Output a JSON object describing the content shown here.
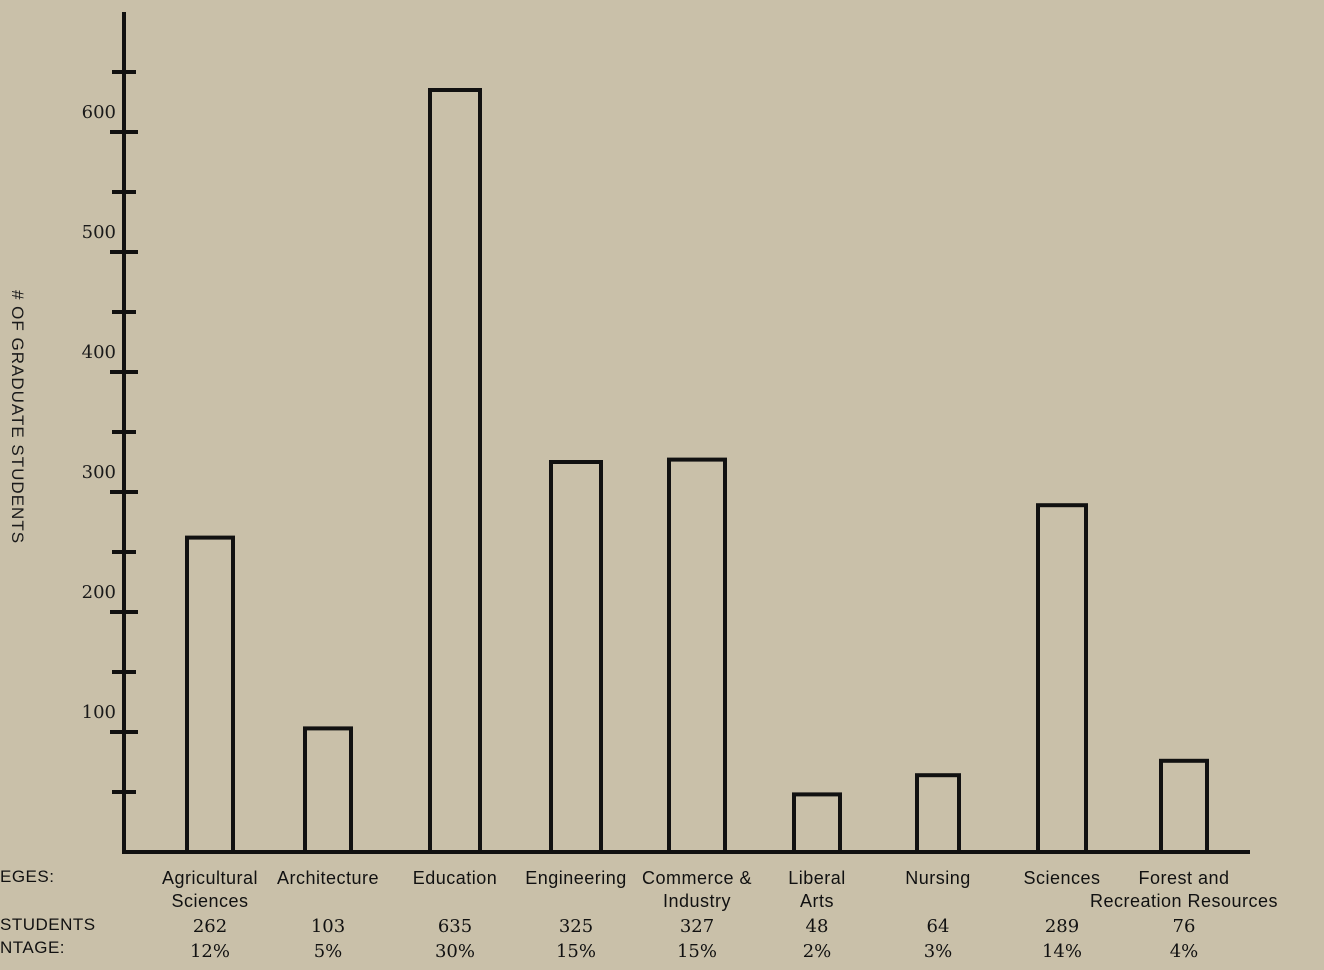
{
  "chart_data": {
    "type": "bar",
    "title": "",
    "ylabel": "# OF GRADUATE STUDENTS",
    "xlabel": "",
    "row_labels": {
      "categories": "EGES:",
      "students": "STUDENTS",
      "percentage": "NTAGE:"
    },
    "categories": [
      [
        "Agricultural",
        "Sciences"
      ],
      [
        "Architecture"
      ],
      [
        "Education"
      ],
      [
        "Engineering"
      ],
      [
        "Commerce &",
        "Industry"
      ],
      [
        "Liberal",
        "Arts"
      ],
      [
        "Nursing"
      ],
      [
        "Sciences"
      ],
      [
        "Forest and",
        "Recreation Resources"
      ]
    ],
    "values": [
      262,
      103,
      635,
      325,
      327,
      48,
      64,
      289,
      76
    ],
    "value_labels": [
      "262",
      "103",
      "635",
      "325",
      "327",
      "48",
      "64",
      "289",
      "76"
    ],
    "percentages": [
      "12%",
      "5%",
      "30%",
      "15%",
      "15%",
      "2%",
      "3%",
      "14%",
      "4%"
    ],
    "ylim": [
      0,
      660
    ],
    "yticks": [
      100,
      200,
      300,
      400,
      500,
      600
    ],
    "minor_ticks": [
      50,
      150,
      250,
      350,
      450,
      550,
      650
    ],
    "grid": false,
    "legend": "none"
  }
}
